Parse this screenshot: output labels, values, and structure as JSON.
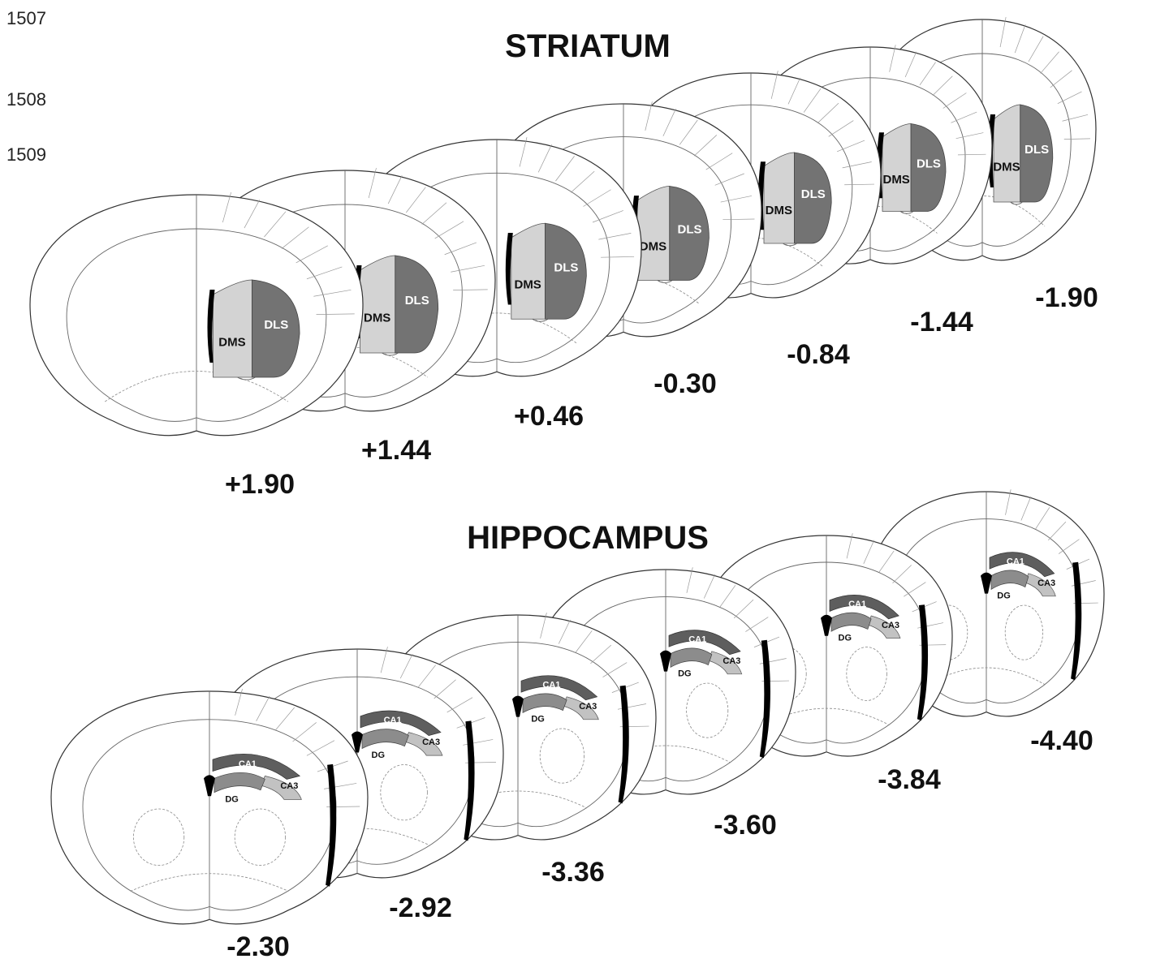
{
  "line_numbers": [
    "1507",
    "1508",
    "1509"
  ],
  "colors": {
    "dms": "#d3d3d3",
    "dls": "#737373",
    "ca1": "#5e5e5e",
    "dg": "#8c8c8c",
    "ca3": "#c2c2c2",
    "ventricle": "#000000",
    "outline": "#333333"
  },
  "striatum": {
    "title": "STRIATUM",
    "sections": [
      {
        "coordinate": "+1.90",
        "labels": {
          "dms": "DMS",
          "dls": "DLS"
        }
      },
      {
        "coordinate": "+1.44",
        "labels": {
          "dms": "DMS",
          "dls": "DLS"
        }
      },
      {
        "coordinate": "+0.46",
        "labels": {
          "dms": "DMS",
          "dls": "DLS"
        }
      },
      {
        "coordinate": "-0.30",
        "labels": {
          "dms": "DMS",
          "dls": "DLS"
        }
      },
      {
        "coordinate": "-0.84",
        "labels": {
          "dms": "DMS",
          "dls": "DLS"
        }
      },
      {
        "coordinate": "-1.44",
        "labels": {
          "dms": "DMS",
          "dls": "DLS"
        }
      },
      {
        "coordinate": "-1.90",
        "labels": {
          "dms": "DMS",
          "dls": "DLS"
        }
      }
    ]
  },
  "hippocampus": {
    "title": "HIPPOCAMPUS",
    "sections": [
      {
        "coordinate": "-2.30",
        "labels": {
          "ca1": "CA1",
          "dg": "DG",
          "ca3": "CA3"
        }
      },
      {
        "coordinate": "-2.92",
        "labels": {
          "ca1": "CA1",
          "dg": "DG",
          "ca3": "CA3"
        }
      },
      {
        "coordinate": "-3.36",
        "labels": {
          "ca1": "CA1",
          "dg": "DG",
          "ca3": "CA3"
        }
      },
      {
        "coordinate": "-3.60",
        "labels": {
          "ca1": "CA1",
          "dg": "DG",
          "ca3": "CA3"
        }
      },
      {
        "coordinate": "-3.84",
        "labels": {
          "ca1": "CA1",
          "dg": "DG",
          "ca3": "CA3"
        }
      },
      {
        "coordinate": "-4.40",
        "labels": {
          "ca1": "CA1",
          "dg": "DG",
          "ca3": "CA3"
        }
      }
    ]
  }
}
